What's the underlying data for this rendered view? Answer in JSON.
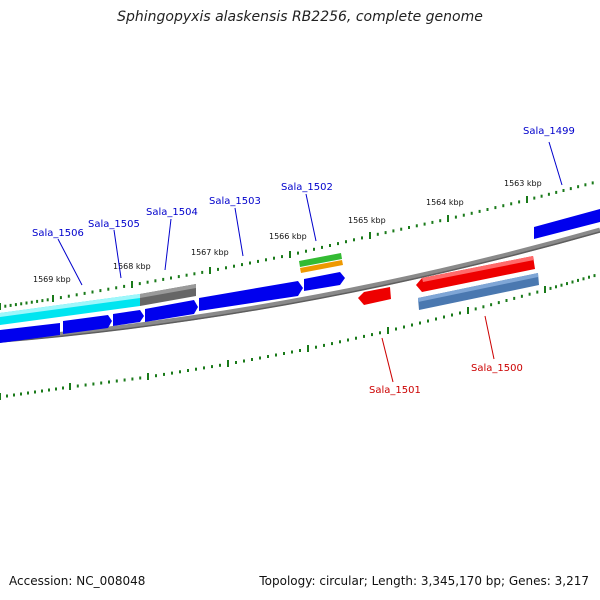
{
  "title": "Sphingopyxis alaskensis RB2256, complete genome",
  "footer": {
    "accession": "Accession: NC_008048",
    "summary": "Topology: circular; Length: 3,345,170 bp; Genes: 3,217"
  },
  "ruler": {
    "tick_labels": [
      "1563 kbp",
      "1564 kbp",
      "1565 kbp",
      "1566 kbp",
      "1567 kbp",
      "1568 kbp",
      "1569 kbp"
    ]
  },
  "genes_forward": [
    "Sala_1499",
    "Sala_1502",
    "Sala_1503",
    "Sala_1504",
    "Sala_1505",
    "Sala_1506"
  ],
  "genes_reverse": [
    "Sala_1500",
    "Sala_1501"
  ],
  "colors": {
    "forward_label": "#0000cc",
    "reverse_label": "#cc0000",
    "cds_blue": "#0000ee",
    "cds_red": "#ee0000",
    "cyan": "#00e5f0",
    "gray": "#666666",
    "steel": "#4a78b0",
    "green": "#33bb33",
    "orange": "#ee9900",
    "tick_green": "#1a7a1a",
    "backbone": "#777777"
  }
}
